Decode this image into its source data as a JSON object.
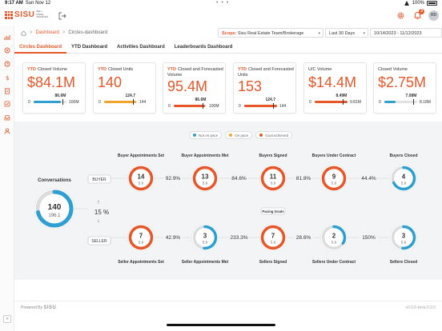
{
  "status_bar": {
    "time": "9:17 AM",
    "date": "Sun Nov 12",
    "battery": "100%",
    "dots": "• • •"
  },
  "header": {
    "logo_text": "SISU",
    "logo_sub": "sell more, smarter",
    "notification_count": "3",
    "avatar_initials": "RD",
    "icons": [
      "export-icon",
      "gear-icon",
      "bell-icon"
    ]
  },
  "breadcrumb": {
    "separator": ">",
    "dashboard": "Dashboard",
    "current": "Circles-dashboard"
  },
  "filters": {
    "scope_label": "Scope:",
    "scope_value": "Sisu Real Estate Team/Brokerage",
    "range": "Last 30 Days",
    "date_range": "10/14/2023 - 11/12/2023"
  },
  "tabs": [
    "Circles Dashboard",
    "YTD Dashboard",
    "Activities Dashboard",
    "Leaderboards Dashboard"
  ],
  "kpis": [
    {
      "ytd": "YTD",
      "title": "Closed Volume",
      "value": "$84.1M",
      "target": "86.6M",
      "min": "0",
      "max": "100M",
      "progress": 0.841,
      "target_frac": 0.866,
      "color": "#2e9fd1"
    },
    {
      "ytd": "YTD",
      "title": "Closed Units",
      "value": "140",
      "target": "124.7",
      "min": "0",
      "max": "144",
      "progress": 0.972,
      "target_frac": 0.866,
      "color": "#f0a52c"
    },
    {
      "ytd": "YTD",
      "title": "Closed and Forecasted Volume",
      "value": "95.4M",
      "target": "86.6M",
      "min": "0",
      "max": "100M",
      "progress": 0.954,
      "target_frac": 0.866,
      "color": "#e8572a"
    },
    {
      "ytd": "YTD",
      "title": "Closed and Forecasted Units",
      "value": "153",
      "target": "124.7",
      "min": "0",
      "max": "144",
      "progress": 1.0,
      "target_frac": 0.866,
      "color": "#e8572a"
    },
    {
      "ytd": "",
      "title": "U/C Volume",
      "value": "$14.4M",
      "target": "8.49M",
      "min": "0",
      "max": "9.81M",
      "progress": 1.0,
      "target_frac": 0.865,
      "color": "#e8572a"
    },
    {
      "ytd": "",
      "title": "Closed Volume",
      "value": "$2.75M",
      "target": "7.08M",
      "min": "0",
      "max": "8.18M",
      "progress": 0.336,
      "target_frac": 0.866,
      "color": "#2e9fd1"
    }
  ],
  "legend": [
    {
      "label": "Not on pace",
      "color": "#2e9fd1"
    },
    {
      "label": "On pace",
      "color": "#f0a52c"
    },
    {
      "label": "Goal achieved",
      "color": "#e8572a"
    }
  ],
  "funnel": {
    "conversations": {
      "label": "Conversations",
      "value": "140",
      "goal": "196.1",
      "progress": 0.714,
      "color": "#2e9fd1"
    },
    "split_rate": "15 %",
    "buyer_label": "BUYER",
    "seller_label": "SELLER",
    "pacing_goals_label": "Pacing Goals",
    "buyer": [
      {
        "label": "Buyer Appointments Set",
        "value": "14",
        "goal": "5.9",
        "progress": 1.0,
        "color": "#e8572a"
      },
      {
        "label": "Buyer Appointments Met",
        "value": "13",
        "goal": "5.9",
        "progress": 1.0,
        "color": "#e8572a"
      },
      {
        "label": "Buyers Signed",
        "value": "11",
        "goal": "5.9",
        "progress": 1.0,
        "color": "#e8572a"
      },
      {
        "label": "Buyers Under Contract",
        "value": "9",
        "goal": "5.9",
        "progress": 1.0,
        "color": "#e8572a"
      },
      {
        "label": "Buyers Closed",
        "value": "4",
        "goal": "5.9",
        "progress": 0.68,
        "color": "#2e9fd1"
      }
    ],
    "buyer_rates": [
      "92.9%",
      "84.6%",
      "81.8%",
      "44.4%"
    ],
    "seller": [
      {
        "label": "Seller Appointments Set",
        "value": "7",
        "goal": "5.9",
        "progress": 1.0,
        "color": "#e8572a"
      },
      {
        "label": "Seller Appointments Met",
        "value": "3",
        "goal": "5.9",
        "progress": 0.51,
        "color": "#2e9fd1"
      },
      {
        "label": "Sellers Signed",
        "value": "7",
        "goal": "5.9",
        "progress": 1.0,
        "color": "#e8572a"
      },
      {
        "label": "Sellers Under Contract",
        "value": "2",
        "goal": "5.9",
        "progress": 0.34,
        "color": "#2e9fd1"
      },
      {
        "label": "Sellers Closed",
        "value": "3",
        "goal": "5.9",
        "progress": 0.51,
        "color": "#2e9fd1"
      }
    ],
    "seller_rates": [
      "42.9%",
      "233.3%",
      "28.6%",
      "150%"
    ]
  },
  "footer": {
    "powered_by": "Powered By",
    "brand": "SISU",
    "version": "v0.0.6-beta.0.0.0"
  }
}
